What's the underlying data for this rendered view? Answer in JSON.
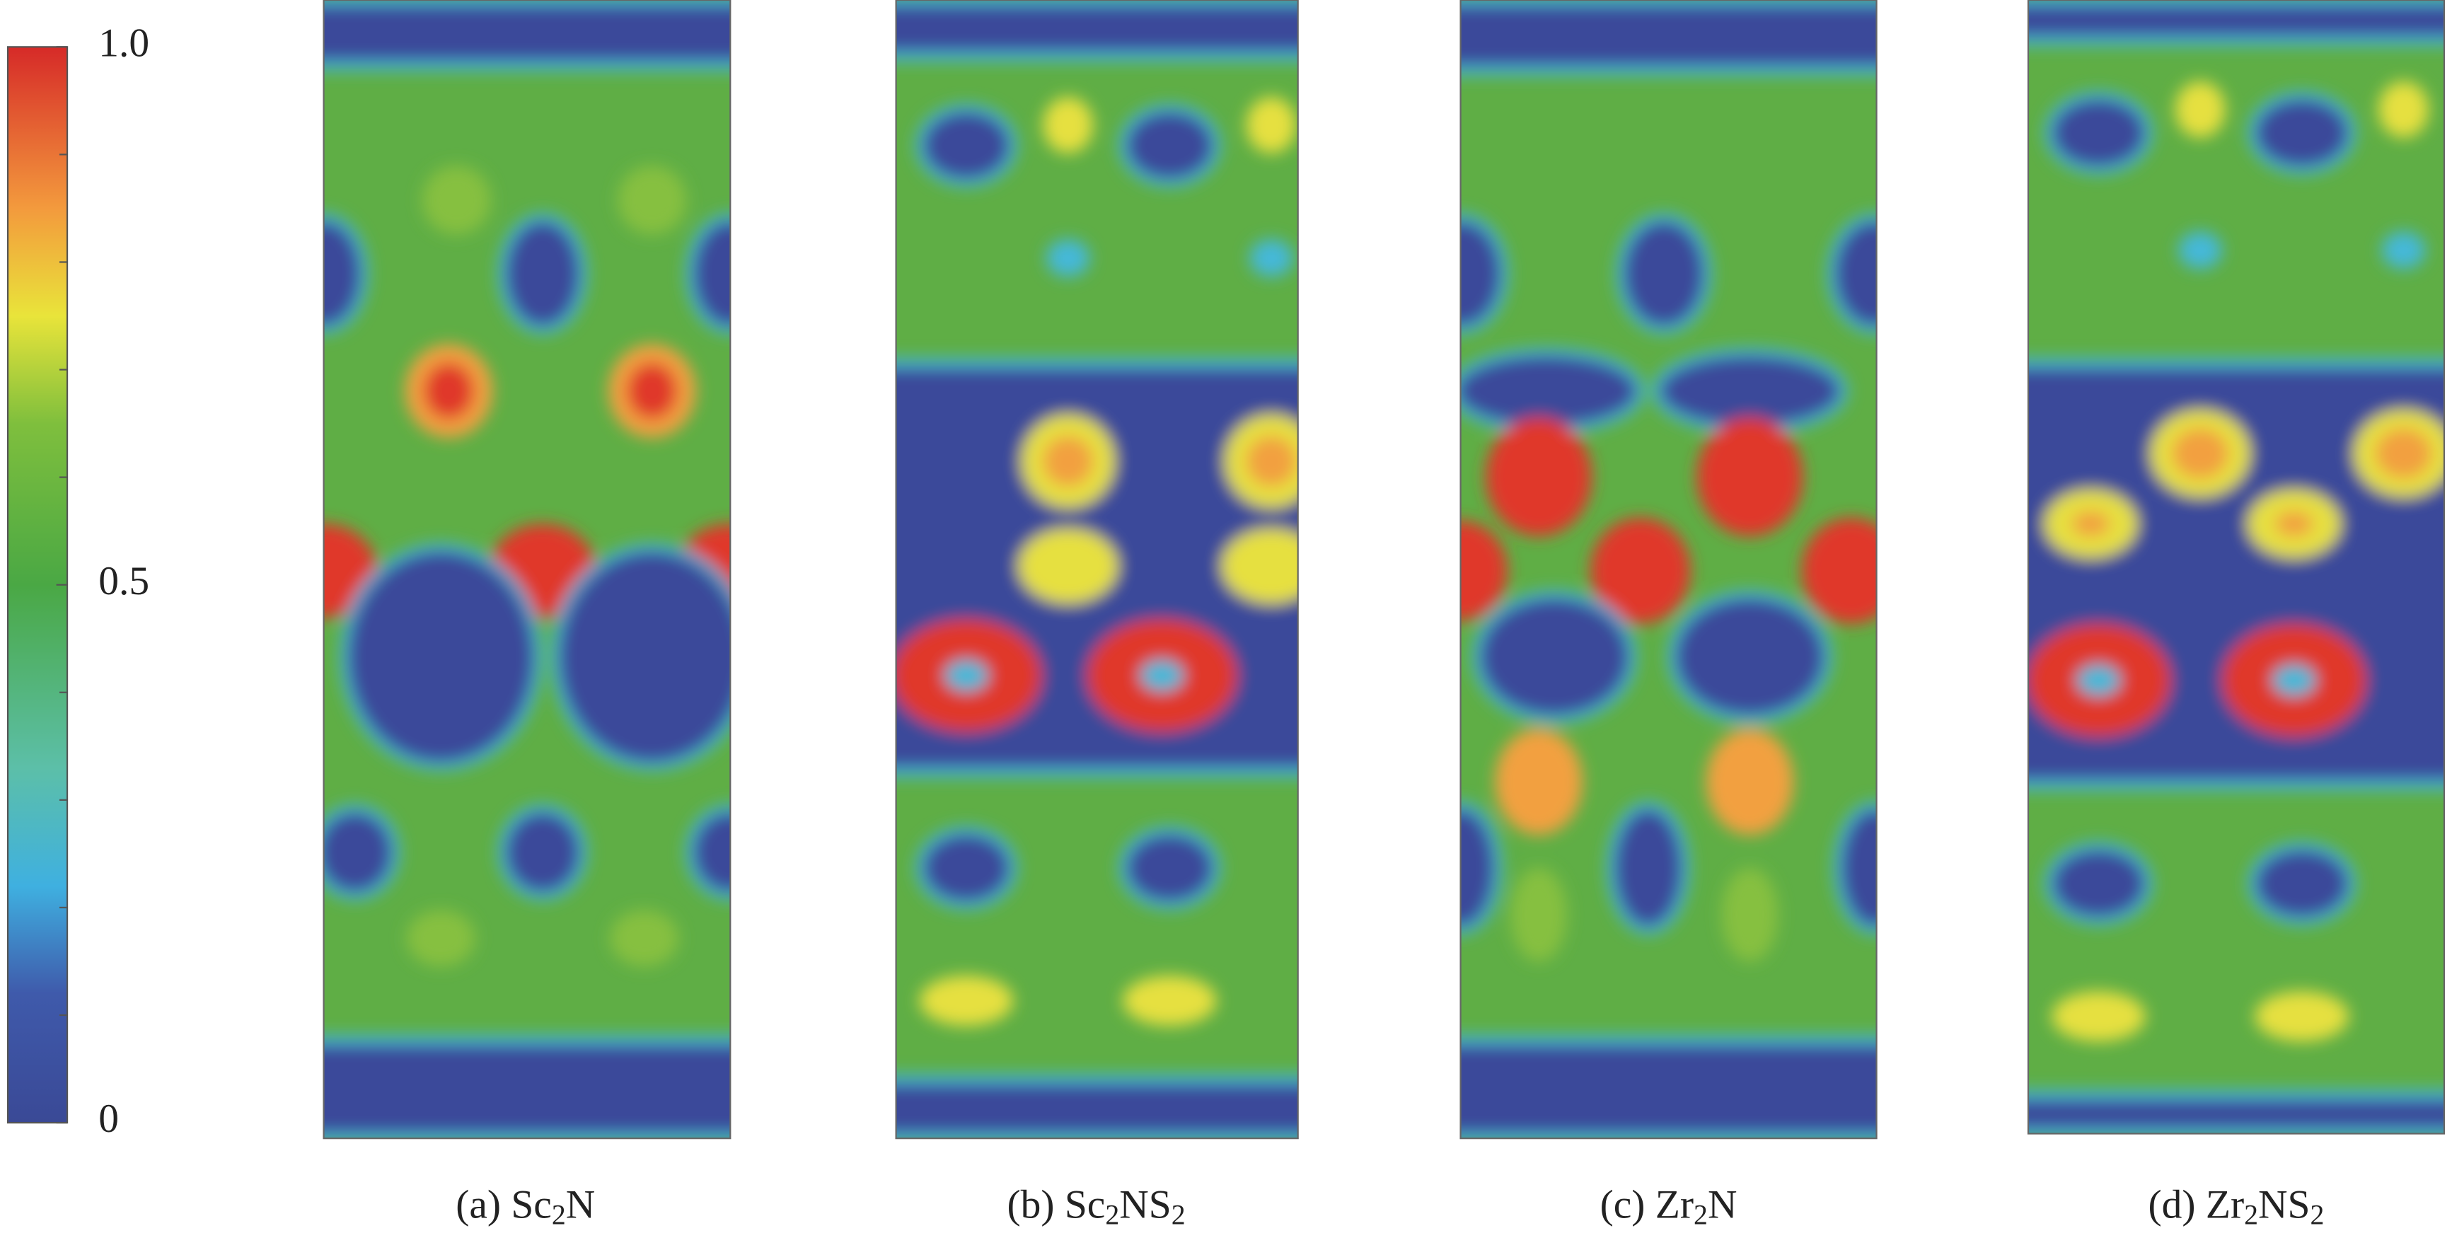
{
  "colorbar": {
    "range": [
      0,
      1
    ],
    "ticks": [
      0,
      0.5,
      {
        "value": 1,
        "label": "1.0"
      }
    ],
    "minor_ticks": [
      0.1,
      0.2,
      0.3,
      0.4,
      0.6,
      0.7,
      0.8,
      0.9
    ]
  },
  "panels": [
    {
      "caption": [
        "(a) Sc",
        "2",
        "N"
      ]
    },
    {
      "caption": [
        "(b) Sc",
        "2",
        "NS",
        "2"
      ]
    },
    {
      "caption": [
        "(c) Zr",
        "2",
        "N"
      ]
    },
    {
      "caption": [
        "(d) Zr",
        "2",
        "NS",
        "2"
      ]
    }
  ]
}
